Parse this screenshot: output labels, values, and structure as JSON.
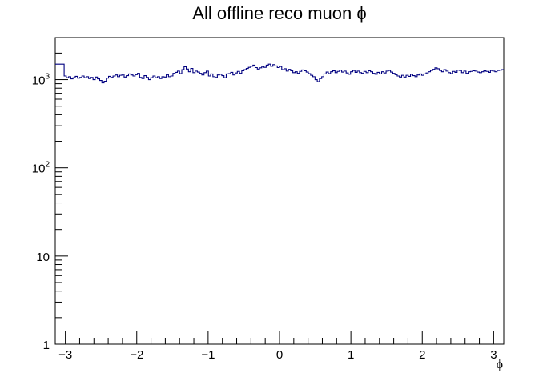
{
  "chart_data": {
    "type": "histogram",
    "title": "All offline reco muon ϕ",
    "xlabel": "ϕ",
    "ylabel": "",
    "xlim": [
      -3.1416,
      3.1416
    ],
    "ylim": [
      1,
      3000
    ],
    "yscale": "log",
    "x_ticks": [
      "−3",
      "−2",
      "−1",
      "0",
      "1",
      "2",
      "3"
    ],
    "x_tick_values": [
      -3,
      -2,
      -1,
      0,
      1,
      2,
      3
    ],
    "y_ticks": [
      {
        "base": "1",
        "exp": ""
      },
      {
        "base": "10",
        "exp": ""
      },
      {
        "base": "10",
        "exp": "2"
      },
      {
        "base": "10",
        "exp": "3"
      }
    ],
    "y_tick_values": [
      1,
      10,
      100,
      1000
    ],
    "line_color": "#000080",
    "bins": 200,
    "values": [
      1500,
      1500,
      1500,
      1500,
      1100,
      1050,
      1080,
      1020,
      1050,
      1090,
      1040,
      1060,
      1100,
      1050,
      1080,
      1030,
      1060,
      1000,
      1070,
      1020,
      980,
      920,
      960,
      1040,
      1090,
      1060,
      1100,
      1130,
      1080,
      1120,
      1150,
      1070,
      1110,
      1160,
      1130,
      1100,
      1140,
      1180,
      1060,
      1030,
      1110,
      1060,
      1000,
      1050,
      1100,
      1050,
      1080,
      1030,
      1080,
      1070,
      1140,
      1080,
      1100,
      1180,
      1210,
      1250,
      1170,
      1300,
      1400,
      1320,
      1230,
      1340,
      1200,
      1250,
      1220,
      1180,
      1130,
      1200,
      1250,
      1100,
      1160,
      1080,
      1060,
      1130,
      1150,
      1110,
      1050,
      1160,
      1170,
      1210,
      1130,
      1190,
      1240,
      1180,
      1260,
      1300,
      1340,
      1380,
      1420,
      1460,
      1370,
      1320,
      1360,
      1410,
      1380,
      1460,
      1500,
      1420,
      1480,
      1430,
      1370,
      1410,
      1300,
      1330,
      1250,
      1310,
      1260,
      1200,
      1230,
      1180,
      1240,
      1290,
      1260,
      1220,
      1170,
      1120,
      1080,
      1000,
      950,
      1030,
      1080,
      1160,
      1220,
      1170,
      1230,
      1260,
      1200,
      1240,
      1280,
      1220,
      1250,
      1190,
      1150,
      1230,
      1270,
      1210,
      1250,
      1200,
      1180,
      1240,
      1200,
      1260,
      1230,
      1180,
      1150,
      1210,
      1160,
      1230,
      1190,
      1250,
      1270,
      1220,
      1180,
      1140,
      1100,
      1070,
      1120,
      1070,
      1120,
      1090,
      1150,
      1110,
      1080,
      1130,
      1160,
      1120,
      1160,
      1190,
      1230,
      1270,
      1310,
      1360,
      1330,
      1270,
      1230,
      1300,
      1250,
      1200,
      1170,
      1240,
      1210,
      1280,
      1270,
      1200,
      1250,
      1180,
      1230,
      1240,
      1260,
      1250,
      1220,
      1200,
      1230,
      1260,
      1240,
      1210,
      1270,
      1250,
      1230,
      1270,
      1280,
      1300
    ]
  }
}
